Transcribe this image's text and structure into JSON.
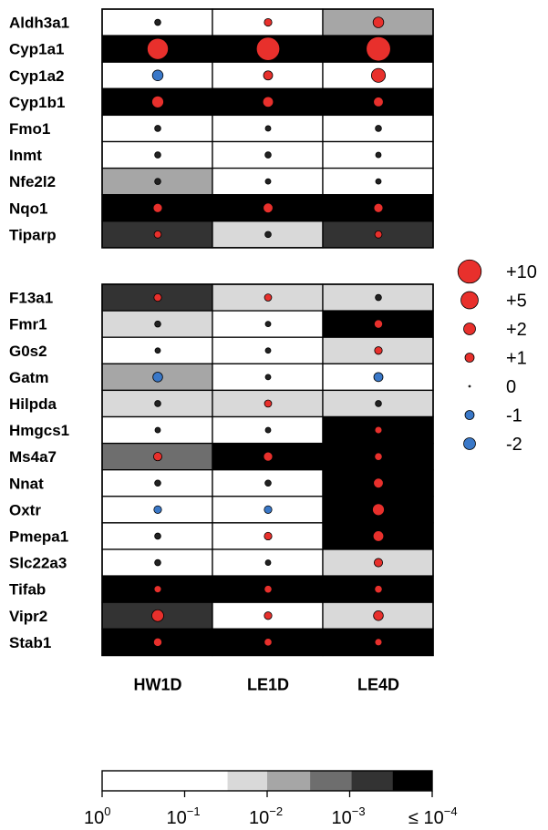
{
  "chart_data": {
    "type": "heatmap",
    "columns": [
      "HW1D",
      "LE1D",
      "LE4D"
    ],
    "groups": [
      {
        "rows": [
          {
            "gene": "Aldh3a1",
            "pvalue_level": [
              0,
              0,
              2
            ],
            "fold_change": [
              0.3,
              0.6,
              1.5
            ]
          },
          {
            "gene": "Cyp1a1",
            "pvalue_level": [
              5,
              5,
              5
            ],
            "fold_change": [
              8,
              10,
              11
            ]
          },
          {
            "gene": "Cyp1a2",
            "pvalue_level": [
              0,
              0,
              0
            ],
            "fold_change": [
              -1.5,
              1,
              3
            ]
          },
          {
            "gene": "Cyp1b1",
            "pvalue_level": [
              5,
              5,
              5
            ],
            "fold_change": [
              2,
              1.5,
              1.2
            ]
          },
          {
            "gene": "Fmo1",
            "pvalue_level": [
              0,
              0,
              0
            ],
            "fold_change": [
              0.3,
              0.2,
              0.3
            ]
          },
          {
            "gene": "Inmt",
            "pvalue_level": [
              0,
              0,
              0
            ],
            "fold_change": [
              0.3,
              0.3,
              0.2
            ]
          },
          {
            "gene": "Nfe2l2",
            "pvalue_level": [
              2,
              0,
              0
            ],
            "fold_change": [
              0.3,
              0.2,
              0.2
            ]
          },
          {
            "gene": "Nqo1",
            "pvalue_level": [
              5,
              5,
              5
            ],
            "fold_change": [
              1,
              1.2,
              1
            ]
          },
          {
            "gene": "Tiparp",
            "pvalue_level": [
              4,
              1,
              4
            ],
            "fold_change": [
              0.5,
              0.3,
              0.5
            ]
          }
        ]
      },
      {
        "rows": [
          {
            "gene": "F13a1",
            "pvalue_level": [
              4,
              1,
              1
            ],
            "fold_change": [
              0.6,
              0.5,
              0.3
            ]
          },
          {
            "gene": "Fmr1",
            "pvalue_level": [
              1,
              0,
              5
            ],
            "fold_change": [
              0.3,
              0.2,
              0.8
            ]
          },
          {
            "gene": "G0s2",
            "pvalue_level": [
              0,
              0,
              1
            ],
            "fold_change": [
              0.2,
              0.2,
              0.6
            ]
          },
          {
            "gene": "Gatm",
            "pvalue_level": [
              2,
              0,
              0
            ],
            "fold_change": [
              -1.2,
              0.2,
              -1
            ]
          },
          {
            "gene": "Hilpda",
            "pvalue_level": [
              1,
              1,
              1
            ],
            "fold_change": [
              0.3,
              0.5,
              0.3
            ]
          },
          {
            "gene": "Hmgcs1",
            "pvalue_level": [
              0,
              0,
              5
            ],
            "fold_change": [
              0.2,
              0.2,
              0.5
            ]
          },
          {
            "gene": "Ms4a7",
            "pvalue_level": [
              3,
              5,
              5
            ],
            "fold_change": [
              0.8,
              1,
              0.6
            ]
          },
          {
            "gene": "Nnat",
            "pvalue_level": [
              0,
              0,
              5
            ],
            "fold_change": [
              0.3,
              0.3,
              1.2
            ]
          },
          {
            "gene": "Oxtr",
            "pvalue_level": [
              0,
              0,
              5
            ],
            "fold_change": [
              -0.6,
              -0.6,
              2
            ]
          },
          {
            "gene": "Pmepa1",
            "pvalue_level": [
              0,
              0,
              5
            ],
            "fold_change": [
              0.3,
              0.6,
              1.5
            ]
          },
          {
            "gene": "Slc22a3",
            "pvalue_level": [
              0,
              0,
              1
            ],
            "fold_change": [
              0.3,
              0.2,
              0.8
            ]
          },
          {
            "gene": "Tifab",
            "pvalue_level": [
              5,
              5,
              5
            ],
            "fold_change": [
              0.5,
              0.6,
              0.6
            ]
          },
          {
            "gene": "Vipr2",
            "pvalue_level": [
              4,
              0,
              1
            ],
            "fold_change": [
              2,
              0.6,
              1.2
            ]
          },
          {
            "gene": "Stab1",
            "pvalue_level": [
              5,
              5,
              5
            ],
            "fold_change": [
              0.8,
              0.6,
              0.5
            ]
          }
        ]
      }
    ],
    "size_legend": [
      {
        "label": "+10",
        "value": 10
      },
      {
        "label": "+5",
        "value": 5
      },
      {
        "label": "+2",
        "value": 2
      },
      {
        "label": "+1",
        "value": 1
      },
      {
        "label": "0",
        "value": 0
      },
      {
        "label": "-1",
        "value": -1
      },
      {
        "label": "-2",
        "value": -2
      }
    ],
    "color_scale": {
      "levels": 6,
      "colors": [
        "#ffffff",
        "#d9d9d9",
        "#a6a6a6",
        "#6e6e6e",
        "#333333",
        "#000000"
      ],
      "ticks": [
        {
          "base": "10",
          "exp": "0",
          "prefix": ""
        },
        {
          "base": "10",
          "exp": "−1",
          "prefix": ""
        },
        {
          "base": "10",
          "exp": "−2",
          "prefix": ""
        },
        {
          "base": "10",
          "exp": "−3",
          "prefix": ""
        },
        {
          "base": "10",
          "exp": "−4",
          "prefix": "≤"
        }
      ],
      "segment_widths": [
        0.38,
        0.12,
        0.13,
        0.125,
        0.125,
        0.12
      ]
    },
    "marker_colors": {
      "up": "#e8302c",
      "down": "#3a78c8",
      "neutral": "#222222"
    }
  }
}
